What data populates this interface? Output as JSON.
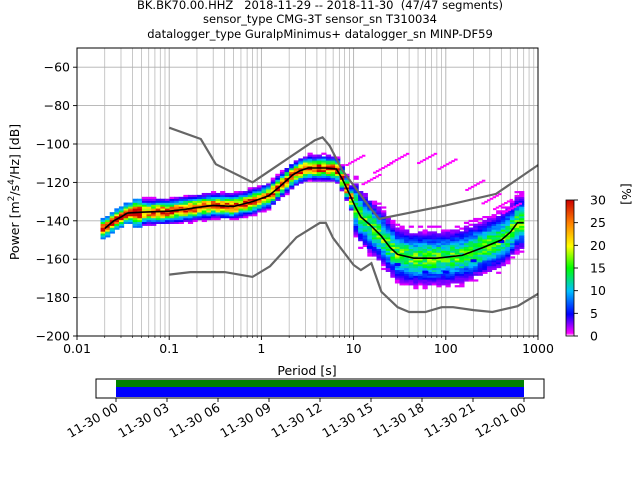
{
  "title_lines": [
    "BK.BK70.00.HHZ   2018-11-29 -- 2018-11-30  (47/47 segments)",
    "sensor_type CMG-3T sensor_sn T310034",
    "datalogger_type GuralpMinimus+ datalogger_sn MINP-DF59"
  ],
  "chart_data": {
    "type": "heatmap",
    "xlabel": "Period [s]",
    "ylabel_parts": [
      "Power [m",
      "2",
      "/s",
      "4",
      "/Hz] [dB]"
    ],
    "x_scale": "log",
    "xlim": [
      0.01,
      1000
    ],
    "ylim": [
      -200,
      -50
    ],
    "x_ticks": [
      0.01,
      0.1,
      1,
      10,
      100,
      1000
    ],
    "x_tick_labels": [
      "0.01",
      "0.1",
      "1",
      "10",
      "100",
      "1000"
    ],
    "y_ticks": [
      -200,
      -180,
      -160,
      -140,
      -120,
      -100,
      -80,
      -60
    ],
    "y_tick_labels": [
      "−200",
      "−180",
      "−160",
      "−140",
      "−120",
      "−100",
      "−80",
      "−60"
    ],
    "grid": true,
    "colorbar": {
      "label": "[%]",
      "ticks": [
        0,
        5,
        10,
        15,
        20,
        25,
        30
      ],
      "tick_labels": [
        "0",
        "5",
        "10",
        "15",
        "20",
        "25",
        "30"
      ],
      "range": [
        0,
        30
      ]
    },
    "noise_model_high": [
      [
        0.1,
        -91.5
      ],
      [
        0.22,
        -97.4
      ],
      [
        0.32,
        -110.5
      ],
      [
        0.8,
        -120
      ],
      [
        3.8,
        -98
      ],
      [
        4.6,
        -96.5
      ],
      [
        5.5,
        -101
      ],
      [
        7.5,
        -113.5
      ],
      [
        15,
        -133
      ],
      [
        19,
        -139
      ],
      [
        100,
        -132
      ],
      [
        350,
        -126
      ],
      [
        1000,
        -111
      ]
    ],
    "noise_model_low": [
      [
        0.1,
        -168
      ],
      [
        0.17,
        -166.7
      ],
      [
        0.4,
        -166.7
      ],
      [
        0.8,
        -169.2
      ],
      [
        1.24,
        -163.7
      ],
      [
        2.4,
        -148.6
      ],
      [
        4.3,
        -141.1
      ],
      [
        5,
        -141.1
      ],
      [
        6,
        -149
      ],
      [
        10,
        -163
      ],
      [
        12,
        -165.7
      ],
      [
        15.6,
        -162.1
      ],
      [
        20,
        -177
      ],
      [
        30,
        -185
      ],
      [
        40,
        -187.5
      ],
      [
        60,
        -187.5
      ],
      [
        90,
        -185
      ],
      [
        120,
        -185
      ],
      [
        200,
        -186.5
      ],
      [
        320,
        -187.5
      ],
      [
        600,
        -184.5
      ],
      [
        1000,
        -178
      ]
    ],
    "mode_curve": [
      [
        0.02,
        -144
      ],
      [
        0.025,
        -140
      ],
      [
        0.03,
        -138
      ],
      [
        0.035,
        -136
      ],
      [
        0.05,
        -135.5
      ],
      [
        0.1,
        -135
      ],
      [
        0.15,
        -134
      ],
      [
        0.2,
        -133
      ],
      [
        0.3,
        -132
      ],
      [
        0.5,
        -132.5
      ],
      [
        0.8,
        -130
      ],
      [
        1.2,
        -127
      ],
      [
        1.6,
        -122
      ],
      [
        2.2,
        -116
      ],
      [
        2.6,
        -114
      ],
      [
        3.2,
        -112.5
      ],
      [
        5,
        -112.5
      ],
      [
        6.5,
        -113
      ],
      [
        7.5,
        -118
      ],
      [
        9,
        -126
      ],
      [
        10.5,
        -133
      ],
      [
        12,
        -138
      ],
      [
        15,
        -142
      ],
      [
        20,
        -148
      ],
      [
        25,
        -154
      ],
      [
        30,
        -157.5
      ],
      [
        45,
        -159.5
      ],
      [
        80,
        -159.5
      ],
      [
        150,
        -158
      ],
      [
        250,
        -154
      ],
      [
        400,
        -150
      ],
      [
        500,
        -146
      ],
      [
        600,
        -141
      ],
      [
        700,
        -141
      ]
    ],
    "upper_spurs": [
      [
        10,
        -108
      ],
      [
        15,
        -118
      ],
      [
        20,
        -112
      ],
      [
        30,
        -107
      ],
      [
        60,
        -107
      ],
      [
        100,
        -110
      ],
      [
        200,
        -121
      ],
      [
        300,
        -128
      ],
      [
        400,
        -131
      ],
      [
        500,
        -133
      ]
    ],
    "lower_spurs": [
      [
        15,
        -153
      ],
      [
        30,
        -162
      ],
      [
        60,
        -166
      ],
      [
        100,
        -166
      ],
      [
        200,
        -160
      ],
      [
        400,
        -150
      ]
    ],
    "time_axis": {
      "tick_labels": [
        "11-30 00",
        "11-30 03",
        "11-30 06",
        "11-30 09",
        "11-30 12",
        "11-30 15",
        "11-30 18",
        "11-30 21",
        "12-01 00"
      ],
      "coverage_colors": [
        "#008000",
        "#0000ff"
      ]
    }
  }
}
